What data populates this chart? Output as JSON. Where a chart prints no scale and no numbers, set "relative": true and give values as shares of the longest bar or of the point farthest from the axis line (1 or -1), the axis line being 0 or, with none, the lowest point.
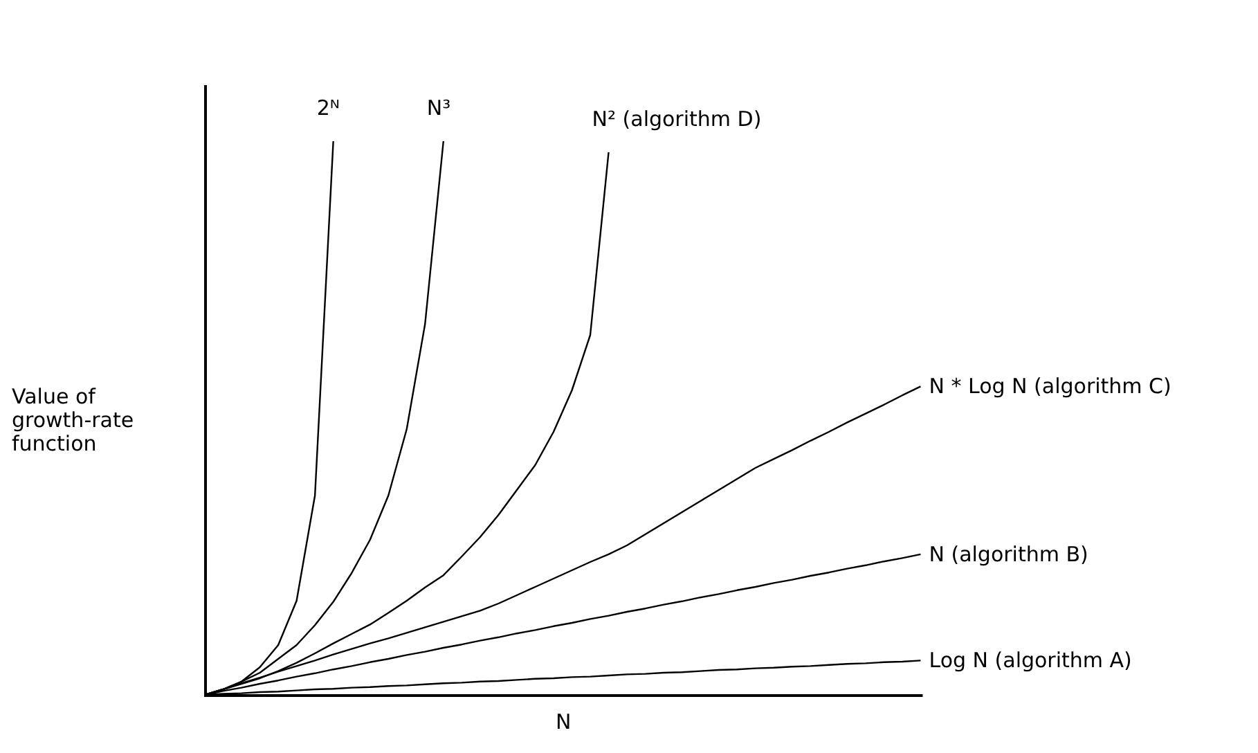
{
  "chart_data": {
    "type": "line",
    "relative": true,
    "xlabel": "N",
    "ylabel": "Value of growth-rate function",
    "tick_labels": false,
    "grid": false,
    "legend": false,
    "marker": "none",
    "line_style": "solid",
    "categories": [
      null,
      null,
      null,
      null,
      null,
      null,
      null,
      null,
      null,
      null,
      null,
      null,
      null,
      null,
      null,
      null,
      null,
      null,
      null,
      null,
      null,
      null,
      null,
      null,
      null,
      null,
      null,
      null,
      null,
      null,
      null,
      null,
      null,
      null,
      null,
      null,
      null,
      null,
      null,
      null
    ],
    "series": [
      {
        "name": "2ᴺ",
        "color": "#000000",
        "values": [
          0,
          0.01,
          0.024,
          0.05,
          0.09,
          0.17,
          0.36,
          1,
          null,
          null,
          null,
          null,
          null,
          null,
          null,
          null,
          null,
          null,
          null,
          null,
          null,
          null,
          null,
          null,
          null,
          null,
          null,
          null,
          null,
          null,
          null,
          null,
          null,
          null,
          null,
          null,
          null,
          null,
          null,
          null
        ]
      },
      {
        "name": "N³",
        "color": "#000000",
        "values": [
          0,
          0.01,
          0.024,
          0.04,
          0.065,
          0.09,
          0.126,
          0.168,
          0.22,
          0.28,
          0.36,
          0.48,
          0.67,
          1,
          null,
          null,
          null,
          null,
          null,
          null,
          null,
          null,
          null,
          null,
          null,
          null,
          null,
          null,
          null,
          null,
          null,
          null,
          null,
          null,
          null,
          null,
          null,
          null,
          null,
          null
        ]
      },
      {
        "name": "N² (algorithm D)",
        "color": "#000000",
        "values": [
          0,
          0.01,
          0.02,
          0.03,
          0.043,
          0.058,
          0.075,
          0.093,
          0.11,
          0.127,
          0.148,
          0.17,
          0.194,
          0.216,
          0.25,
          0.285,
          0.325,
          0.37,
          0.415,
          0.475,
          0.55,
          0.65,
          0.98,
          null,
          null,
          null,
          null,
          null,
          null,
          null,
          null,
          null,
          null,
          null,
          null,
          null,
          null,
          null,
          null,
          null
        ]
      },
      {
        "name": "N * Log N  (algorithm C)",
        "color": "#000000",
        "values": [
          0,
          0.01,
          0.021,
          0.031,
          0.042,
          0.052,
          0.062,
          0.073,
          0.083,
          0.093,
          0.102,
          0.112,
          0.122,
          0.132,
          0.142,
          0.152,
          0.165,
          0.18,
          0.195,
          0.21,
          0.225,
          0.24,
          0.254,
          0.27,
          0.29,
          0.31,
          0.33,
          0.35,
          0.37,
          0.39,
          0.41,
          0.426,
          0.442,
          0.459,
          0.475,
          0.492,
          0.508,
          0.524,
          0.541,
          0.557
        ]
      },
      {
        "name": "N  (algorithm B)",
        "color": "#000000",
        "values": [
          0,
          0.007,
          0.013,
          0.02,
          0.026,
          0.033,
          0.039,
          0.046,
          0.052,
          0.059,
          0.065,
          0.072,
          0.078,
          0.085,
          0.091,
          0.098,
          0.104,
          0.111,
          0.117,
          0.124,
          0.13,
          0.137,
          0.143,
          0.15,
          0.156,
          0.163,
          0.169,
          0.176,
          0.182,
          0.189,
          0.195,
          0.202,
          0.208,
          0.215,
          0.221,
          0.228,
          0.234,
          0.241,
          0.247,
          0.254
        ]
      },
      {
        "name": "Log N  (algorithm A)",
        "color": "#000000",
        "values": [
          0,
          0.002,
          0.003,
          0.005,
          0.006,
          0.008,
          0.01,
          0.011,
          0.013,
          0.014,
          0.016,
          0.017,
          0.019,
          0.021,
          0.022,
          0.024,
          0.025,
          0.027,
          0.029,
          0.03,
          0.032,
          0.033,
          0.035,
          0.037,
          0.038,
          0.04,
          0.041,
          0.043,
          0.045,
          0.046,
          0.048,
          0.049,
          0.051,
          0.052,
          0.054,
          0.056,
          0.057,
          0.059,
          0.06,
          0.062
        ]
      }
    ]
  }
}
